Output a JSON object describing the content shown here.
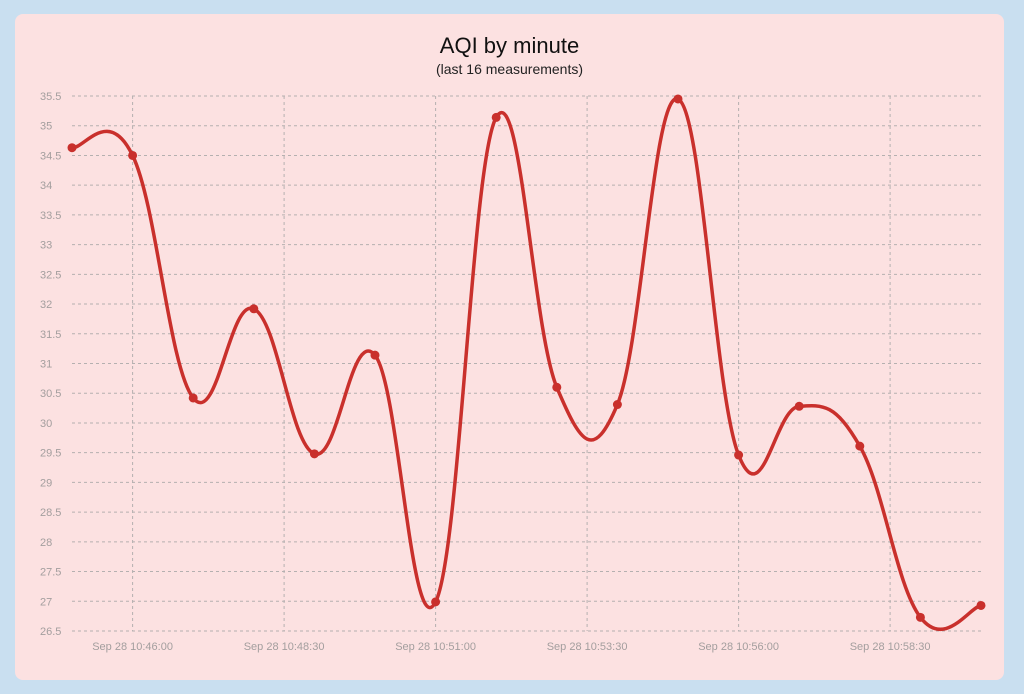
{
  "chart_data": {
    "type": "line",
    "title": "AQI by minute",
    "subtitle": "(last 16 measurements)",
    "xlabel": "",
    "ylabel": "",
    "ylim": [
      26.5,
      35.5
    ],
    "yticks": [
      "26.5",
      "27",
      "27.5",
      "28",
      "28.5",
      "29",
      "29.5",
      "30",
      "30.5",
      "31",
      "31.5",
      "32",
      "32.5",
      "33",
      "33.5",
      "34",
      "34.5",
      "35",
      "35.5"
    ],
    "xticks": [
      "Sep 28 10:46:00",
      "Sep 28 10:48:30",
      "Sep 28 10:51:00",
      "Sep 28 10:53:30",
      "Sep 28 10:56:00",
      "Sep 28 10:58:30"
    ],
    "grid": true,
    "series": [
      {
        "color": "#c9302c",
        "x": [
          "Sep 28 10:45:00",
          "Sep 28 10:46:00",
          "Sep 28 10:47:00",
          "Sep 28 10:48:00",
          "Sep 28 10:49:00",
          "Sep 28 10:50:00",
          "Sep 28 10:51:00",
          "Sep 28 10:52:00",
          "Sep 28 10:53:00",
          "Sep 28 10:54:00",
          "Sep 28 10:55:00",
          "Sep 28 10:56:00",
          "Sep 28 10:57:00",
          "Sep 28 10:58:00",
          "Sep 28 10:59:00",
          "Sep 28 11:00:00"
        ],
        "values": [
          34.63,
          34.5,
          30.42,
          31.92,
          29.48,
          31.14,
          26.99,
          35.14,
          30.6,
          30.31,
          35.45,
          29.46,
          30.28,
          29.61,
          26.73,
          26.93
        ]
      }
    ]
  }
}
